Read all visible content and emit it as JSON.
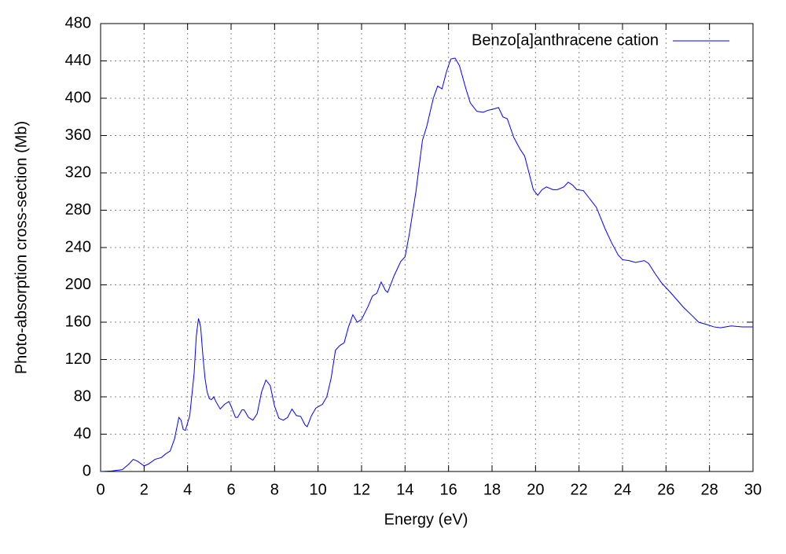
{
  "chart_data": {
    "type": "line",
    "xlabel": "Energy (eV)",
    "ylabel": "Photo-absorption cross-section (Mb)",
    "x": [
      0,
      0.5,
      1.0,
      1.3,
      1.5,
      1.7,
      2.0,
      2.2,
      2.5,
      2.8,
      3.0,
      3.2,
      3.4,
      3.6,
      3.7,
      3.8,
      3.9,
      4.1,
      4.3,
      4.4,
      4.5,
      4.6,
      4.7,
      4.8,
      4.9,
      5.0,
      5.1,
      5.2,
      5.3,
      5.5,
      5.7,
      5.9,
      6.0,
      6.2,
      6.3,
      6.5,
      6.6,
      6.8,
      7.0,
      7.2,
      7.4,
      7.6,
      7.8,
      8.0,
      8.2,
      8.4,
      8.6,
      8.8,
      9.0,
      9.2,
      9.4,
      9.5,
      9.7,
      9.9,
      10.2,
      10.4,
      10.6,
      10.8,
      11.0,
      11.2,
      11.4,
      11.6,
      11.8,
      12.0,
      12.3,
      12.5,
      12.7,
      12.9,
      13.1,
      13.2,
      13.5,
      13.8,
      14.0,
      14.2,
      14.5,
      14.8,
      15.0,
      15.3,
      15.5,
      15.7,
      15.9,
      16.1,
      16.3,
      16.5,
      16.8,
      17.0,
      17.3,
      17.6,
      17.8,
      18.0,
      18.3,
      18.5,
      18.7,
      19.0,
      19.3,
      19.5,
      19.7,
      19.9,
      20.1,
      20.3,
      20.5,
      20.8,
      21.0,
      21.3,
      21.5,
      21.7,
      21.9,
      22.2,
      22.5,
      22.8,
      23.2,
      23.5,
      23.8,
      24.0,
      24.3,
      24.6,
      25.0,
      25.2,
      25.5,
      25.8,
      26.2,
      26.5,
      26.8,
      27.2,
      27.5,
      27.8,
      28.2,
      28.5,
      29.0,
      29.5,
      30.0
    ],
    "series": [
      {
        "name": "Benzo[a]anthracene cation",
        "color": "#0000ff",
        "values": [
          0,
          0.5,
          2,
          8,
          13,
          11,
          6,
          8,
          13,
          15,
          19,
          22,
          35,
          58,
          55,
          45,
          44,
          60,
          105,
          145,
          164,
          155,
          125,
          100,
          85,
          78,
          77,
          80,
          75,
          67,
          72,
          75,
          70,
          58,
          58,
          66,
          66,
          58,
          55,
          62,
          85,
          98,
          92,
          70,
          57,
          55,
          58,
          67,
          60,
          59,
          50,
          48,
          60,
          68,
          72,
          80,
          100,
          130,
          135,
          138,
          155,
          168,
          160,
          163,
          177,
          188,
          191,
          203,
          194,
          192,
          210,
          225,
          230,
          255,
          300,
          355,
          370,
          400,
          413,
          410,
          428,
          442,
          443,
          435,
          410,
          395,
          386,
          385,
          387,
          388,
          390,
          380,
          378,
          358,
          345,
          338,
          320,
          302,
          296,
          302,
          305,
          302,
          302,
          305,
          310,
          307,
          302,
          301,
          292,
          283,
          260,
          245,
          232,
          227,
          226,
          224,
          226,
          223,
          212,
          202,
          192,
          184,
          176,
          167,
          160,
          158,
          155,
          154,
          156,
          155,
          155
        ]
      }
    ],
    "xlim": [
      0,
      30
    ],
    "xticks": [
      0,
      2,
      4,
      6,
      8,
      10,
      12,
      14,
      16,
      18,
      20,
      22,
      24,
      26,
      28,
      30
    ],
    "ylim": [
      0,
      480
    ],
    "yticks": [
      0,
      40,
      80,
      120,
      160,
      200,
      240,
      280,
      320,
      360,
      400,
      440,
      480
    ],
    "grid": true,
    "legend": "top right"
  }
}
